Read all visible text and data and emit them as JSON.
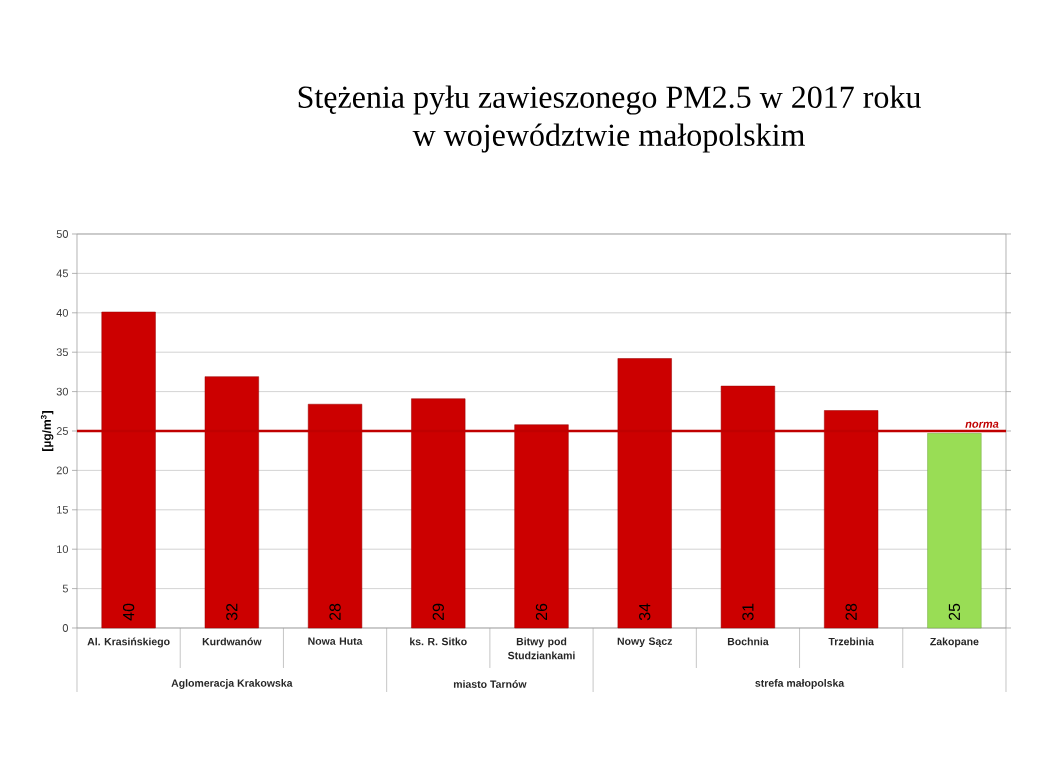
{
  "chart_data": {
    "type": "bar",
    "title": "Stężenia pyłu zawieszonego PM2.5 w 2017 roku w województwie małopolskim",
    "ylabel": "[µg/m$^{3}$]",
    "categories": [
      "Al. Krasińskiego",
      "Kurdwanów",
      "Nowa Huta",
      "ks. R. Sitko",
      "Bitwy pod Studziankami",
      "Nowy Sącz",
      "Bochnia",
      "Trzebinia",
      "Zakopane"
    ],
    "values": [
      40.1,
      31.9,
      28.4,
      29.1,
      25.8,
      34.2,
      30.7,
      27.6,
      24.7
    ],
    "colors": [
      "#cc0000",
      "#cc0000",
      "#cc0000",
      "#cc0000",
      "#cc0000",
      "#cc0000",
      "#cc0000",
      "#cc0000",
      "#99dd55"
    ],
    "value_labels": [
      "40",
      "32",
      "28",
      "29",
      "26",
      "34",
      "31",
      "28",
      "25"
    ],
    "ylim": [
      0,
      50
    ],
    "yticks": [
      0,
      5,
      10,
      15,
      20,
      25,
      30,
      35,
      40,
      45,
      50
    ],
    "grid": "y",
    "ref_lines": [
      {
        "axis": "y",
        "value": 25,
        "label": "norma",
        "color": "#c00000"
      }
    ],
    "annotations": [
      "Aglomeracja Krakowska",
      "miasto Tarnów",
      "strefa małopolska"
    ]
  }
}
